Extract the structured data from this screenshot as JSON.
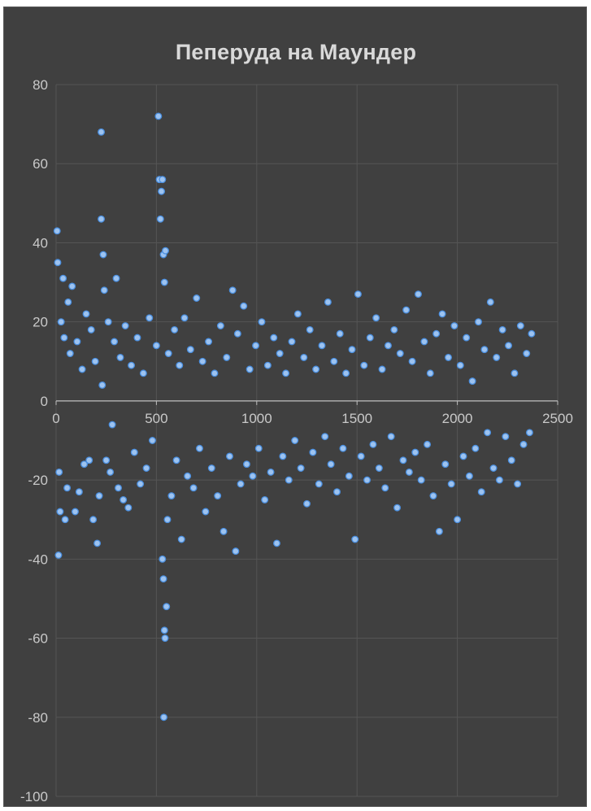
{
  "chart_data": {
    "type": "scatter",
    "title": "Пеперуда на Маундер",
    "xlabel": "",
    "ylabel": "",
    "xlim": [
      0,
      2500
    ],
    "ylim": [
      -100,
      80
    ],
    "x_ticks": [
      0,
      500,
      1000,
      1500,
      2000,
      2500
    ],
    "y_ticks": [
      80,
      60,
      40,
      20,
      0,
      -20,
      -40,
      -60,
      -80,
      -100
    ],
    "grid": true,
    "legend": "none",
    "colors": {
      "background": "#404040",
      "point_fill": "#9dc3f0",
      "point_edge": "#4a8fe0",
      "grid": "#555555",
      "axis": "#bfbfbf"
    },
    "series": [
      {
        "values": [
          [
            5,
            43
          ],
          [
            8,
            35
          ],
          [
            12,
            -39
          ],
          [
            15,
            -18
          ],
          [
            20,
            -28
          ],
          [
            25,
            20
          ],
          [
            35,
            31
          ],
          [
            40,
            16
          ],
          [
            45,
            -30
          ],
          [
            55,
            -22
          ],
          [
            60,
            25
          ],
          [
            70,
            12
          ],
          [
            80,
            29
          ],
          [
            95,
            -28
          ],
          [
            105,
            15
          ],
          [
            115,
            -23
          ],
          [
            130,
            8
          ],
          [
            140,
            -16
          ],
          [
            150,
            22
          ],
          [
            165,
            -15
          ],
          [
            175,
            18
          ],
          [
            185,
            -30
          ],
          [
            195,
            10
          ],
          [
            205,
            -36
          ],
          [
            215,
            -24
          ],
          [
            225,
            68
          ],
          [
            225,
            46
          ],
          [
            230,
            4
          ],
          [
            235,
            37
          ],
          [
            240,
            28
          ],
          [
            250,
            -15
          ],
          [
            260,
            20
          ],
          [
            270,
            -18
          ],
          [
            280,
            -6
          ],
          [
            290,
            15
          ],
          [
            300,
            31
          ],
          [
            310,
            -22
          ],
          [
            320,
            11
          ],
          [
            335,
            -25
          ],
          [
            345,
            19
          ],
          [
            360,
            -27
          ],
          [
            375,
            9
          ],
          [
            390,
            -13
          ],
          [
            405,
            16
          ],
          [
            420,
            -21
          ],
          [
            435,
            7
          ],
          [
            450,
            -17
          ],
          [
            465,
            21
          ],
          [
            480,
            -10
          ],
          [
            500,
            14
          ],
          [
            510,
            72
          ],
          [
            515,
            56
          ],
          [
            520,
            46
          ],
          [
            525,
            53
          ],
          [
            530,
            56
          ],
          [
            535,
            37
          ],
          [
            540,
            30
          ],
          [
            545,
            38
          ],
          [
            530,
            -40
          ],
          [
            535,
            -45
          ],
          [
            540,
            -58
          ],
          [
            543,
            -60
          ],
          [
            537,
            -80
          ],
          [
            550,
            -52
          ],
          [
            555,
            -30
          ],
          [
            560,
            12
          ],
          [
            575,
            -24
          ],
          [
            590,
            18
          ],
          [
            600,
            -15
          ],
          [
            615,
            9
          ],
          [
            625,
            -35
          ],
          [
            640,
            21
          ],
          [
            655,
            -19
          ],
          [
            670,
            13
          ],
          [
            685,
            -22
          ],
          [
            700,
            26
          ],
          [
            715,
            -12
          ],
          [
            730,
            10
          ],
          [
            745,
            -28
          ],
          [
            760,
            15
          ],
          [
            775,
            -17
          ],
          [
            790,
            7
          ],
          [
            805,
            -24
          ],
          [
            820,
            19
          ],
          [
            835,
            -33
          ],
          [
            850,
            11
          ],
          [
            865,
            -14
          ],
          [
            880,
            28
          ],
          [
            895,
            -38
          ],
          [
            905,
            17
          ],
          [
            920,
            -21
          ],
          [
            935,
            24
          ],
          [
            950,
            -16
          ],
          [
            965,
            8
          ],
          [
            980,
            -19
          ],
          [
            995,
            14
          ],
          [
            1010,
            -12
          ],
          [
            1025,
            20
          ],
          [
            1040,
            -25
          ],
          [
            1055,
            9
          ],
          [
            1070,
            -18
          ],
          [
            1085,
            16
          ],
          [
            1100,
            -36
          ],
          [
            1115,
            12
          ],
          [
            1130,
            -14
          ],
          [
            1145,
            7
          ],
          [
            1160,
            -20
          ],
          [
            1175,
            15
          ],
          [
            1190,
            -10
          ],
          [
            1205,
            22
          ],
          [
            1220,
            -17
          ],
          [
            1235,
            11
          ],
          [
            1250,
            -26
          ],
          [
            1265,
            18
          ],
          [
            1280,
            -13
          ],
          [
            1295,
            8
          ],
          [
            1310,
            -21
          ],
          [
            1325,
            14
          ],
          [
            1340,
            -9
          ],
          [
            1355,
            25
          ],
          [
            1370,
            -16
          ],
          [
            1385,
            10
          ],
          [
            1400,
            -23
          ],
          [
            1415,
            17
          ],
          [
            1430,
            -12
          ],
          [
            1445,
            7
          ],
          [
            1460,
            -19
          ],
          [
            1475,
            13
          ],
          [
            1490,
            -35
          ],
          [
            1505,
            27
          ],
          [
            1520,
            -14
          ],
          [
            1535,
            9
          ],
          [
            1550,
            -20
          ],
          [
            1565,
            16
          ],
          [
            1580,
            -11
          ],
          [
            1595,
            21
          ],
          [
            1610,
            -17
          ],
          [
            1625,
            8
          ],
          [
            1640,
            -22
          ],
          [
            1655,
            14
          ],
          [
            1670,
            -9
          ],
          [
            1685,
            18
          ],
          [
            1700,
            -27
          ],
          [
            1715,
            12
          ],
          [
            1730,
            -15
          ],
          [
            1745,
            23
          ],
          [
            1760,
            -18
          ],
          [
            1775,
            10
          ],
          [
            1790,
            -13
          ],
          [
            1805,
            27
          ],
          [
            1820,
            -20
          ],
          [
            1835,
            15
          ],
          [
            1850,
            -11
          ],
          [
            1865,
            7
          ],
          [
            1880,
            -24
          ],
          [
            1895,
            17
          ],
          [
            1910,
            -33
          ],
          [
            1925,
            22
          ],
          [
            1940,
            -16
          ],
          [
            1955,
            11
          ],
          [
            1970,
            -21
          ],
          [
            1985,
            19
          ],
          [
            2000,
            -30
          ],
          [
            2015,
            9
          ],
          [
            2030,
            -14
          ],
          [
            2045,
            16
          ],
          [
            2060,
            -19
          ],
          [
            2075,
            5
          ],
          [
            2090,
            -12
          ],
          [
            2105,
            20
          ],
          [
            2120,
            -23
          ],
          [
            2135,
            13
          ],
          [
            2150,
            -8
          ],
          [
            2165,
            25
          ],
          [
            2180,
            -17
          ],
          [
            2195,
            11
          ],
          [
            2210,
            -20
          ],
          [
            2225,
            18
          ],
          [
            2240,
            -9
          ],
          [
            2255,
            14
          ],
          [
            2270,
            -15
          ],
          [
            2285,
            7
          ],
          [
            2300,
            -21
          ],
          [
            2315,
            19
          ],
          [
            2330,
            -11
          ],
          [
            2345,
            12
          ],
          [
            2360,
            -8
          ],
          [
            2370,
            17
          ]
        ]
      }
    ]
  }
}
